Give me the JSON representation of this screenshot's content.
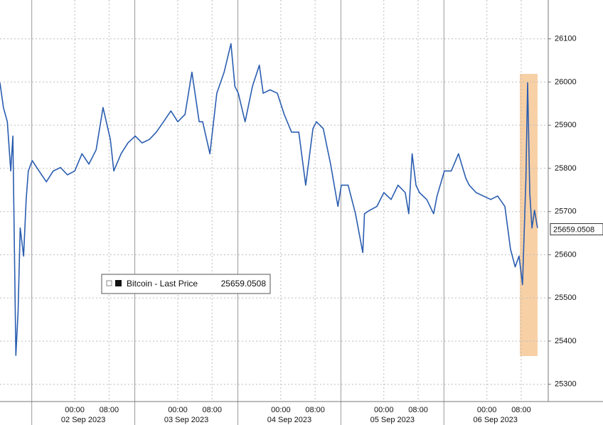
{
  "chart_data": {
    "type": "line",
    "series": [
      {
        "name": "Bitcoin - Last Price",
        "color": "#2a5db0",
        "values": [
          25998,
          25941,
          25908,
          25794,
          25875,
          25367,
          25466,
          25662,
          25597,
          25728,
          25794,
          25818,
          25794,
          25769,
          25794,
          25802,
          25785,
          25794,
          25834,
          25810,
          25843,
          25941,
          25867,
          25794,
          25834,
          25859,
          25875,
          25859,
          25867,
          25884,
          25908,
          25933,
          25908,
          25925,
          26023,
          25908,
          25908,
          25834,
          25974,
          26023,
          26089,
          25990,
          25974,
          25908,
          25990,
          26039,
          25974,
          25982,
          25974,
          25925,
          25884,
          25884,
          25761,
          25892,
          25908,
          25892,
          25810,
          25712,
          25761,
          25761,
          25695,
          25605,
          25695,
          25703,
          25712,
          25744,
          25728,
          25761,
          25744,
          25695,
          25834,
          25761,
          25744,
          25728,
          25695,
          25736,
          25794,
          25794,
          25834,
          25777,
          25761,
          25744,
          25736,
          25728,
          25736,
          25712,
          25613,
          25572,
          25597,
          25531,
          25777,
          25998,
          25744,
          25662,
          25703,
          25662
        ]
      }
    ],
    "x": [
      -17.4,
      -16.6,
      -15.7,
      -14.9,
      -14.4,
      -13.7,
      -13.2,
      -12.7,
      -11.9,
      -11.3,
      -10.8,
      -9.9,
      -8.3,
      -6.6,
      -5.0,
      -3.3,
      -1.7,
      0,
      1.7,
      3.3,
      5.0,
      6.6,
      8.3,
      9.1,
      10.8,
      12.4,
      14.1,
      15.7,
      17.4,
      19.0,
      20.7,
      22.4,
      24.0,
      25.7,
      27.3,
      29.0,
      29.8,
      31.5,
      33.1,
      34.8,
      36.4,
      37.3,
      38.1,
      39.7,
      41.4,
      43.0,
      43.9,
      45.5,
      47.2,
      48.8,
      50.5,
      52.2,
      53.8,
      55.5,
      56.3,
      57.9,
      59.6,
      61.3,
      62.1,
      63.7,
      65.4,
      67.1,
      67.5,
      68.7,
      70.4,
      72.0,
      73.7,
      75.3,
      77.0,
      77.8,
      78.6,
      79.5,
      80.3,
      82.0,
      83.6,
      84.4,
      86.1,
      87.7,
      89.4,
      91.1,
      91.9,
      93.5,
      95.2,
      96.9,
      98.5,
      100.2,
      101.5,
      102.6,
      103.5,
      104.3,
      105.1,
      105.5,
      106.0,
      106.5,
      107.1,
      107.8
    ],
    "last_price": 25659.0508,
    "xlim": [
      -17.4,
      110.3
    ],
    "xticks": [
      {
        "value": 0,
        "label": "00:00"
      },
      {
        "value": 8,
        "label": "08:00"
      },
      {
        "value": 24,
        "label": "00:00"
      },
      {
        "value": 32,
        "label": "08:00"
      },
      {
        "value": 48,
        "label": "00:00"
      },
      {
        "value": 56,
        "label": "08:00"
      },
      {
        "value": 72,
        "label": "00:00"
      },
      {
        "value": 80,
        "label": "08:00"
      },
      {
        "value": 96,
        "label": "00:00"
      },
      {
        "value": 104,
        "label": "08:00"
      }
    ],
    "day_separators": [
      -10,
      14,
      38,
      62,
      86
    ],
    "day_labels": [
      {
        "value": 2,
        "label": "02 Sep 2023"
      },
      {
        "value": 26,
        "label": "03 Sep 2023"
      },
      {
        "value": 50,
        "label": "04 Sep 2023"
      },
      {
        "value": 74,
        "label": "05 Sep 2023"
      },
      {
        "value": 98,
        "label": "06 Sep 2023"
      }
    ],
    "ylim": [
      25260,
      26190
    ],
    "yticks": [
      25300,
      25400,
      25500,
      25600,
      25700,
      25800,
      25900,
      26000,
      26100
    ],
    "grid": true
  }
}
